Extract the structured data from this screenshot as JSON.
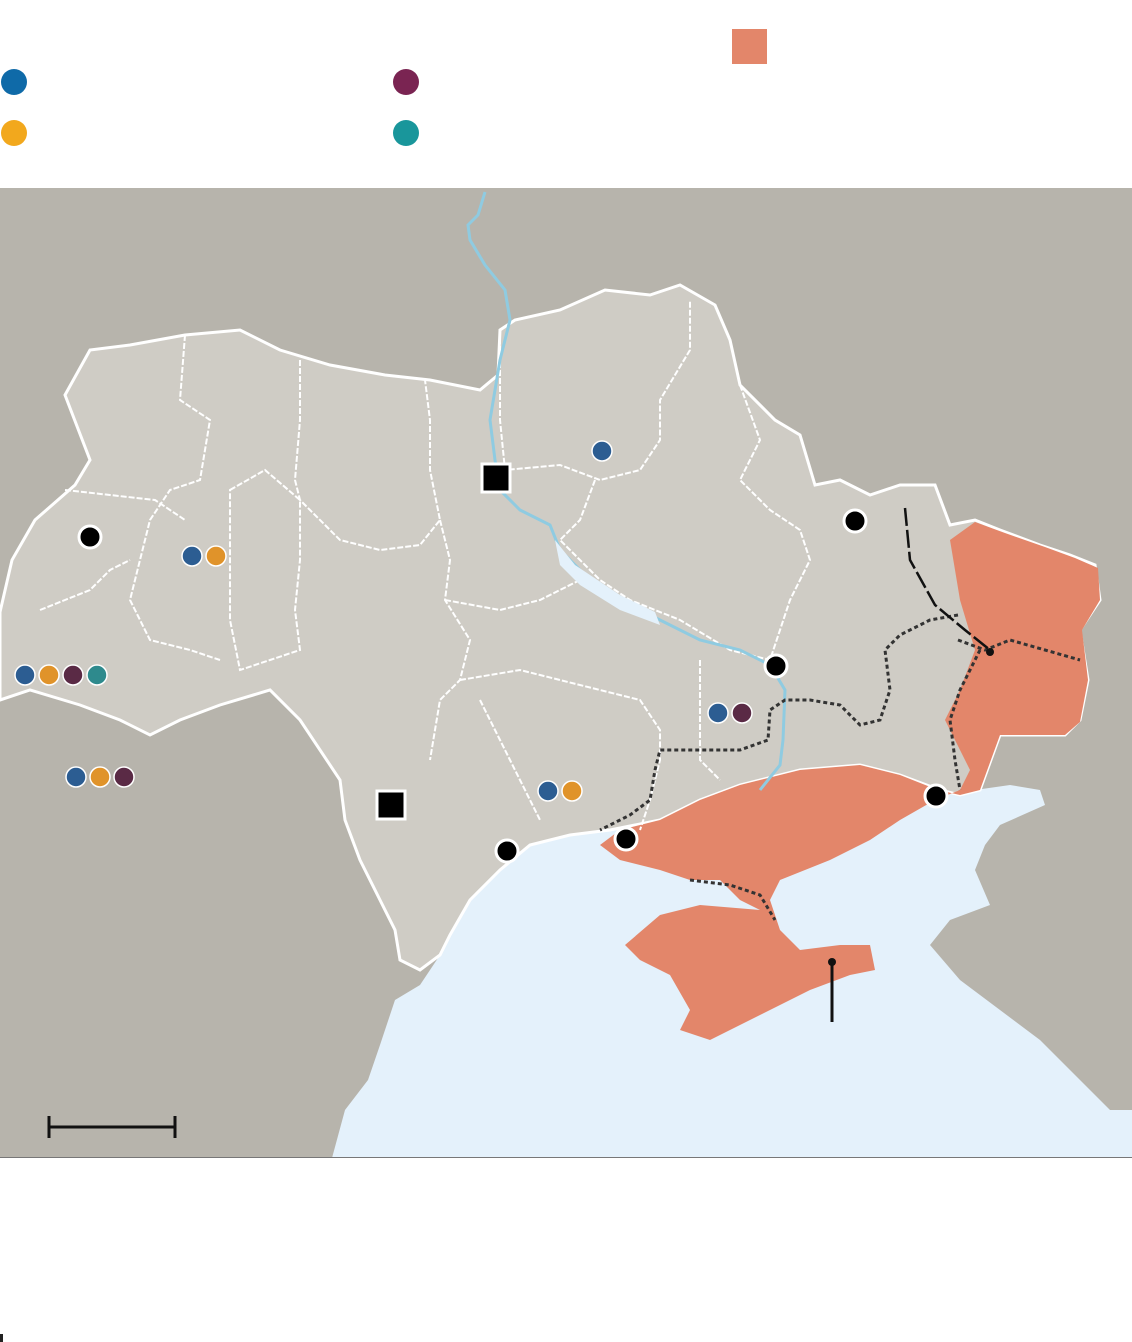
{
  "legend": {
    "items": [
      {
        "id": "blue",
        "color": "#0f6aa8",
        "label": ""
      },
      {
        "id": "purple",
        "color": "#7a2452",
        "label": ""
      },
      {
        "id": "orange",
        "color": "#f2a81d",
        "label": ""
      },
      {
        "id": "teal",
        "color": "#19969b",
        "label": ""
      }
    ],
    "occupied": {
      "color": "#e3866a",
      "label": ""
    }
  },
  "map": {
    "colors": {
      "neighbour_land": "#b7b4ac",
      "ukraine_land": "#cfccc5",
      "sea": "#e4f1fb",
      "river": "#8fcbe1",
      "occupied": "#e3866a",
      "border": "#ffffff",
      "marker_blue": "#2c5d92",
      "marker_orange": "#e0932a",
      "marker_purple": "#5a2a45",
      "marker_teal": "#2e8a8d"
    },
    "scale_bar_label": "",
    "footer_source": ""
  }
}
